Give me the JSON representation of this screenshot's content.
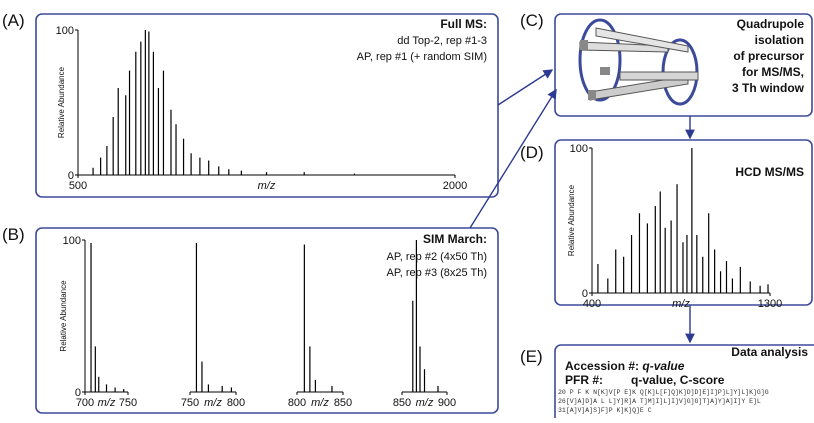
{
  "panels": {
    "A": {
      "label": "(A)",
      "lines": [
        "Full MS:",
        "dd Top-2, rep #1-3",
        "AP, rep #1 (+ random SIM)"
      ]
    },
    "B": {
      "label": "(B)",
      "lines": [
        "SIM March:",
        "AP, rep #2 (4x50 Th)",
        "AP, rep #3 (8x25 Th)"
      ]
    },
    "C": {
      "label": "(C)",
      "lines": [
        "Quadrupole",
        "isolation",
        "of precursor",
        "for MS/MS,",
        "3 Th window"
      ]
    },
    "D": {
      "label": "(D)",
      "lines": [
        "HCD MS/MS"
      ]
    },
    "E": {
      "label": "(E)",
      "title": "Data analysis",
      "accession": "Accession #:",
      "acc_value": "q-value",
      "pfr": "PFR #:",
      "pfr_value": "q-value, C-score",
      "sequences": [
        "20 P F K N[K]V[P E]K Q[K]L[F]Q]K]D]D]E]I]P]L]Y]L]K]G]G",
        "26[V]A]D]A L L]Y]R]A T]M]I]L]I]V]G]G]T]A]Y]A]I]Y E]L",
        "31[A]V]A]S]F]P K]K]Q]E C"
      ]
    }
  },
  "chart_data": [
    {
      "type": "stem",
      "color": "#000000",
      "xlabel": "m/z",
      "ylabel": "Relative Abundance",
      "xlim": [
        500,
        2000
      ],
      "ylim": [
        0,
        100
      ],
      "xticks": [
        500,
        2000
      ],
      "yticks": [
        0,
        100
      ],
      "x": [
        560,
        590,
        615,
        640,
        660,
        690,
        705,
        730,
        750,
        768,
        782,
        800,
        820,
        840,
        870,
        890,
        920,
        950,
        985,
        1020,
        1060,
        1100,
        1150,
        1250,
        1400,
        1600
      ],
      "values": [
        5,
        12,
        20,
        40,
        60,
        55,
        72,
        85,
        92,
        100,
        99,
        85,
        60,
        72,
        45,
        35,
        25,
        15,
        12,
        10,
        6,
        4,
        3,
        2,
        2,
        1
      ]
    },
    {
      "type": "stem",
      "color": "#000000",
      "xlabel": "m/z",
      "ylabel": "Relative Abundance",
      "xlim": [
        700,
        750
      ],
      "ylim": [
        0,
        100
      ],
      "xticks": [
        700,
        750
      ],
      "yticks": [
        0,
        100
      ],
      "x": [
        707,
        712,
        716,
        725,
        735,
        745
      ],
      "values": [
        98,
        30,
        10,
        5,
        3,
        2
      ]
    },
    {
      "type": "stem",
      "color": "#000000",
      "xlabel": "m/z",
      "xlim": [
        750,
        800
      ],
      "ylim": [
        0,
        100
      ],
      "xticks": [
        750,
        800
      ],
      "x": [
        757,
        763,
        770,
        785,
        795
      ],
      "values": [
        98,
        20,
        5,
        4,
        3
      ]
    },
    {
      "type": "stem",
      "color": "#000000",
      "xlabel": "m/z",
      "xlim": [
        800,
        850
      ],
      "ylim": [
        0,
        100
      ],
      "xticks": [
        800,
        850
      ],
      "x": [
        808,
        814,
        820,
        838
      ],
      "values": [
        97,
        30,
        8,
        4
      ]
    },
    {
      "type": "stem",
      "color": "#000000",
      "xlabel": "m/z",
      "xlim": [
        850,
        900
      ],
      "ylim": [
        0,
        100
      ],
      "xticks": [
        850,
        900
      ],
      "x": [
        862,
        866,
        870,
        875,
        890
      ],
      "values": [
        60,
        100,
        30,
        15,
        4
      ]
    },
    {
      "type": "stem",
      "color": "#000000",
      "xlabel": "m/z",
      "ylabel": "Relative Abundance",
      "xlim": [
        400,
        1300
      ],
      "ylim": [
        0,
        100
      ],
      "xticks": [
        400,
        1300
      ],
      "yticks": [
        0,
        100
      ],
      "x": [
        430,
        480,
        520,
        560,
        600,
        640,
        680,
        720,
        745,
        770,
        800,
        830,
        860,
        880,
        905,
        930,
        960,
        990,
        1020,
        1050,
        1080,
        1110,
        1150,
        1200,
        1250,
        1290
      ],
      "values": [
        20,
        10,
        30,
        25,
        40,
        55,
        48,
        60,
        70,
        45,
        50,
        75,
        35,
        40,
        100,
        40,
        25,
        55,
        30,
        15,
        22,
        10,
        18,
        8,
        5,
        6
      ]
    }
  ]
}
